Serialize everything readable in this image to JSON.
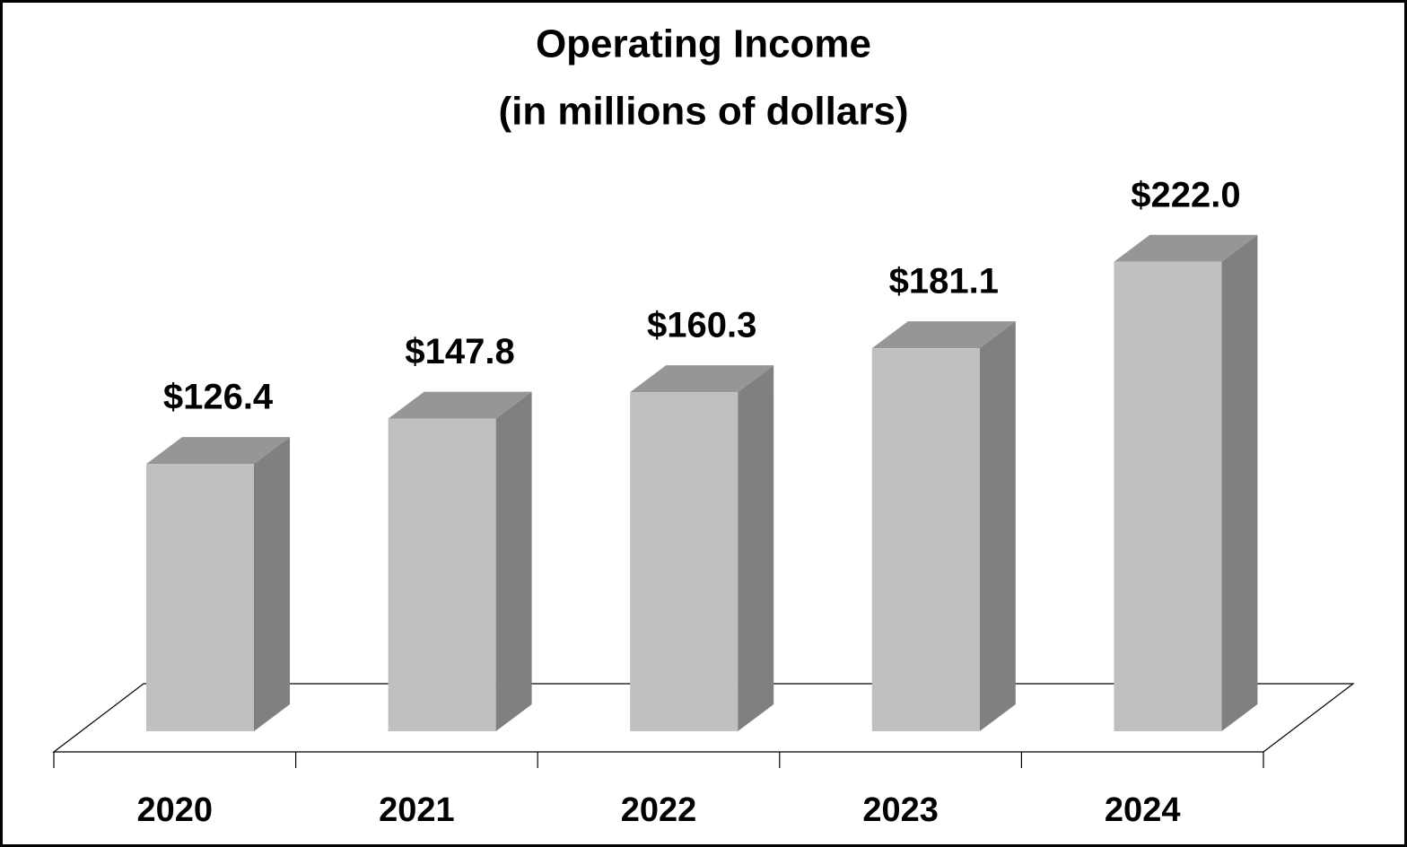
{
  "chart_data": {
    "type": "bar3d",
    "title": "Operating Income",
    "subtitle": "(in millions of dollars)",
    "categories": [
      "2020",
      "2021",
      "2022",
      "2023",
      "2024"
    ],
    "values": [
      126.4,
      147.8,
      160.3,
      181.1,
      222.0
    ],
    "value_labels": [
      "$126.4",
      "$147.8",
      "$160.3",
      "$181.1",
      "$222.0"
    ],
    "color": "#c0c0c0"
  }
}
